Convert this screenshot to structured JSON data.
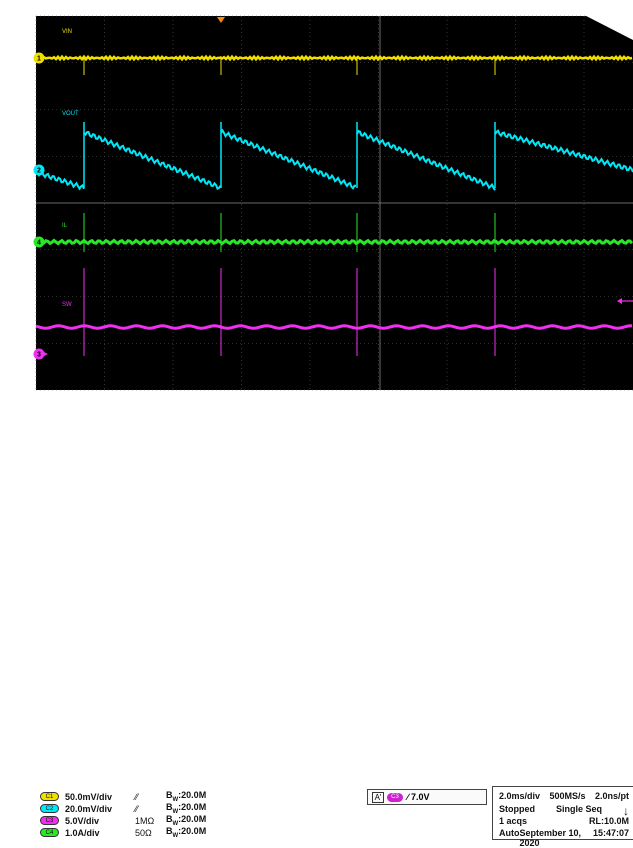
{
  "title_bar": "",
  "traces": [
    {
      "id": "1",
      "name": "VIN",
      "color": "#f0e000"
    },
    {
      "id": "2",
      "name": "VOUT",
      "color": "#00e8f8"
    },
    {
      "id": "4",
      "name": "IL",
      "color": "#28e828"
    },
    {
      "id": "3",
      "name": "SW",
      "color": "#f030f0"
    }
  ],
  "channels": [
    {
      "pill": "C1",
      "color": "#f0e000",
      "scale": "50.0mV/div",
      "coupling": "⁄⁄",
      "bw": "20.0M"
    },
    {
      "pill": "C2",
      "color": "#00e8f8",
      "scale": "20.0mV/div",
      "coupling": "⁄⁄",
      "bw": "20.0M"
    },
    {
      "pill": "C3",
      "color": "#f030f0",
      "scale": "5.0V/div",
      "coupling": "1MΩ",
      "bw": "20.0M"
    },
    {
      "pill": "C4",
      "color": "#28e828",
      "scale": "1.0A/div",
      "coupling": "50Ω",
      "bw": "20.0M"
    }
  ],
  "bw_prefix": "B",
  "bw_sub": "W",
  "trigger": {
    "badge": "A'",
    "channel": "C3",
    "level": "∕ 7.0V"
  },
  "acquisition": {
    "timebase": "2.0ms/div",
    "sample_rate": "500MS/s",
    "resolution": "2.0ns/pt",
    "state": "Stopped",
    "mode": "Single Seq",
    "acqs": "1 acqs",
    "record_length": "RL:10.0M",
    "trigger_mode": "Auto",
    "date": "September 10, 2020",
    "time": "15:47:07"
  },
  "colors": {
    "screen": "#000000",
    "grid": "#5a5a5a",
    "trigger_marker": "#ff8c00"
  }
}
